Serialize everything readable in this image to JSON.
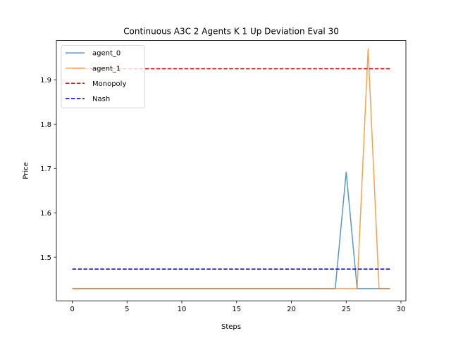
{
  "chart_data": {
    "type": "line",
    "title": "Continuous A3C 2 Agents K 1 Up Deviation Eval 30",
    "xlabel": "Steps",
    "ylabel": "Price",
    "xlim": [
      -1.45,
      30.45
    ],
    "ylim": [
      1.4015,
      1.9885
    ],
    "xticks": [
      0,
      5,
      10,
      15,
      20,
      25,
      30
    ],
    "yticks": [
      1.5,
      1.6,
      1.7,
      1.8,
      1.9
    ],
    "ytick_labels": [
      "1.5",
      "1.6",
      "1.7",
      "1.8",
      "1.9"
    ],
    "grid": false,
    "legend_position": "upper-left",
    "x": [
      0,
      1,
      2,
      3,
      4,
      5,
      6,
      7,
      8,
      9,
      10,
      11,
      12,
      13,
      14,
      15,
      16,
      17,
      18,
      19,
      20,
      21,
      22,
      23,
      24,
      25,
      26,
      27,
      28,
      29
    ],
    "series": [
      {
        "name": "agent_0",
        "color": "#1f77b4",
        "style": "solid",
        "values": [
          1.429,
          1.429,
          1.429,
          1.429,
          1.429,
          1.429,
          1.429,
          1.429,
          1.429,
          1.429,
          1.429,
          1.429,
          1.429,
          1.429,
          1.429,
          1.429,
          1.429,
          1.429,
          1.429,
          1.429,
          1.429,
          1.429,
          1.429,
          1.429,
          1.429,
          1.692,
          1.429,
          1.429,
          1.429,
          1.429
        ]
      },
      {
        "name": "agent_1",
        "color": "#ff7f0e",
        "style": "solid",
        "values": [
          1.429,
          1.429,
          1.429,
          1.429,
          1.429,
          1.429,
          1.429,
          1.429,
          1.429,
          1.429,
          1.429,
          1.429,
          1.429,
          1.429,
          1.429,
          1.429,
          1.429,
          1.429,
          1.429,
          1.429,
          1.429,
          1.429,
          1.429,
          1.429,
          1.429,
          1.429,
          1.429,
          1.97,
          1.429,
          1.429
        ]
      },
      {
        "name": "Monopoly",
        "color": "#ff0000",
        "style": "dashed",
        "values": [
          1.925,
          1.925,
          1.925,
          1.925,
          1.925,
          1.925,
          1.925,
          1.925,
          1.925,
          1.925,
          1.925,
          1.925,
          1.925,
          1.925,
          1.925,
          1.925,
          1.925,
          1.925,
          1.925,
          1.925,
          1.925,
          1.925,
          1.925,
          1.925,
          1.925,
          1.925,
          1.925,
          1.925,
          1.925,
          1.925
        ]
      },
      {
        "name": "Nash",
        "color": "#0000ff",
        "style": "dashed",
        "values": [
          1.473,
          1.473,
          1.473,
          1.473,
          1.473,
          1.473,
          1.473,
          1.473,
          1.473,
          1.473,
          1.473,
          1.473,
          1.473,
          1.473,
          1.473,
          1.473,
          1.473,
          1.473,
          1.473,
          1.473,
          1.473,
          1.473,
          1.473,
          1.473,
          1.473,
          1.473,
          1.473,
          1.473,
          1.473,
          1.473
        ]
      }
    ]
  }
}
